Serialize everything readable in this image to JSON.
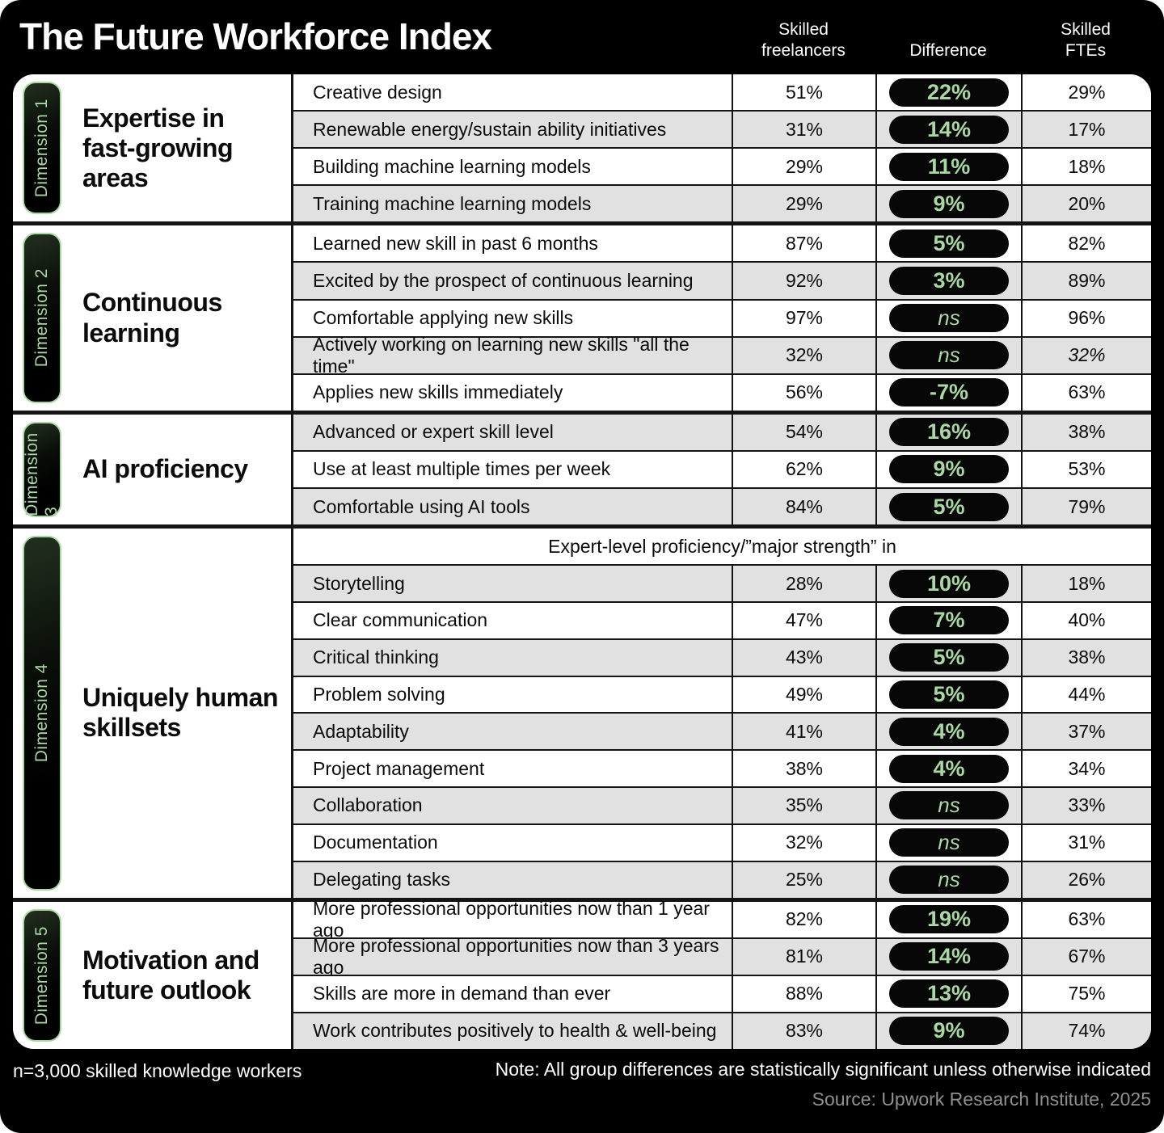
{
  "title": "The Future Workforce Index",
  "columns": {
    "freelancers": "Skilled\nfreelancers",
    "difference": "Difference",
    "ftes": "Skilled\nFTEs"
  },
  "colors": {
    "background": "#000000",
    "accent_green": "#a9d8a3",
    "row_alt_gray": "#e1e1e1",
    "pill_bg": "#070707",
    "source_gray": "#8f8f8f"
  },
  "sections": [
    {
      "dimension": "Dimension 1",
      "title": "Expertise in fast-growing areas",
      "rows": [
        {
          "label": "Creative design",
          "freelancers": "51%",
          "difference": "22%",
          "ftes": "29%"
        },
        {
          "label": "Renewable energy/sustain ability initiatives",
          "freelancers": "31%",
          "difference": "14%",
          "ftes": "17%"
        },
        {
          "label": "Building machine learning models",
          "freelancers": "29%",
          "difference": "11%",
          "ftes": "18%"
        },
        {
          "label": "Training machine learning models",
          "freelancers": "29%",
          "difference": "9%",
          "ftes": "20%"
        }
      ]
    },
    {
      "dimension": "Dimension 2",
      "title": "Continuous learning",
      "rows": [
        {
          "label": "Learned new skill in past 6 months",
          "freelancers": "87%",
          "difference": "5%",
          "ftes": "82%"
        },
        {
          "label": "Excited by the prospect of continuous learning",
          "freelancers": "92%",
          "difference": "3%",
          "ftes": "89%"
        },
        {
          "label": "Comfortable applying new skills",
          "freelancers": "97%",
          "difference": "ns",
          "ftes": "96%"
        },
        {
          "label": "Actively working on learning new skills \"all the time\"",
          "freelancers": "32%",
          "difference": "ns",
          "ftes": "32%",
          "ftes_italic": true
        },
        {
          "label": "Applies new skills immediately",
          "freelancers": "56%",
          "difference": "-7%",
          "ftes": "63%"
        }
      ]
    },
    {
      "dimension": "Dimension 3",
      "title": "AI proficiency",
      "rows": [
        {
          "label": "Advanced or expert skill level",
          "freelancers": "54%",
          "difference": "16%",
          "ftes": "38%"
        },
        {
          "label": "Use at least multiple times per week",
          "freelancers": "62%",
          "difference": "9%",
          "ftes": "53%"
        },
        {
          "label": "Comfortable using AI tools",
          "freelancers": "84%",
          "difference": "5%",
          "ftes": "79%"
        }
      ]
    },
    {
      "dimension": "Dimension 4",
      "title": "Uniquely human skillsets",
      "span_header": "Expert-level proficiency/”major strength” in",
      "rows": [
        {
          "label": "Storytelling",
          "freelancers": "28%",
          "difference": "10%",
          "ftes": "18%"
        },
        {
          "label": "Clear communication",
          "freelancers": "47%",
          "difference": "7%",
          "ftes": "40%"
        },
        {
          "label": "Critical thinking",
          "freelancers": "43%",
          "difference": "5%",
          "ftes": "38%"
        },
        {
          "label": "Problem solving",
          "freelancers": "49%",
          "difference": "5%",
          "ftes": "44%"
        },
        {
          "label": "Adaptability",
          "freelancers": "41%",
          "difference": "4%",
          "ftes": "37%"
        },
        {
          "label": "Project management",
          "freelancers": "38%",
          "difference": "4%",
          "ftes": "34%"
        },
        {
          "label": "Collaboration",
          "freelancers": "35%",
          "difference": "ns",
          "ftes": "33%"
        },
        {
          "label": "Documentation",
          "freelancers": "32%",
          "difference": "ns",
          "ftes": "31%"
        },
        {
          "label": "Delegating tasks",
          "freelancers": "25%",
          "difference": "ns",
          "ftes": "26%"
        }
      ]
    },
    {
      "dimension": "Dimension 5",
      "title": "Motivation and future outlook",
      "rows": [
        {
          "label": "More professional opportunities now than 1 year ago",
          "freelancers": "82%",
          "difference": "19%",
          "ftes": "63%"
        },
        {
          "label": "More professional opportunities now than 3 years ago",
          "freelancers": "81%",
          "difference": "14%",
          "ftes": "67%"
        },
        {
          "label": "Skills are more in demand than ever",
          "freelancers": "88%",
          "difference": "13%",
          "ftes": "75%"
        },
        {
          "label": "Work contributes positively to health & well-being",
          "freelancers": "83%",
          "difference": "9%",
          "ftes": "74%"
        }
      ]
    }
  ],
  "footer": {
    "sample": "n=3,000 skilled knowledge workers",
    "note": "Note: All group differences are statistically significant unless otherwise indicated",
    "source": "Source: Upwork Research Institute, 2025"
  },
  "chart_data": {
    "type": "table",
    "title": "The Future Workforce Index",
    "columns": [
      "Skilled freelancers",
      "Difference",
      "Skilled FTEs"
    ],
    "groups": [
      {
        "dimension": "Dimension 1",
        "name": "Expertise in fast-growing areas",
        "rows": [
          {
            "label": "Creative design",
            "skilled_freelancers_pct": 51,
            "difference": "22%",
            "skilled_ftes_pct": 29
          },
          {
            "label": "Renewable energy/sustain ability initiatives",
            "skilled_freelancers_pct": 31,
            "difference": "14%",
            "skilled_ftes_pct": 17
          },
          {
            "label": "Building machine learning models",
            "skilled_freelancers_pct": 29,
            "difference": "11%",
            "skilled_ftes_pct": 18
          },
          {
            "label": "Training machine learning models",
            "skilled_freelancers_pct": 29,
            "difference": "9%",
            "skilled_ftes_pct": 20
          }
        ]
      },
      {
        "dimension": "Dimension 2",
        "name": "Continuous learning",
        "rows": [
          {
            "label": "Learned new skill in past 6 months",
            "skilled_freelancers_pct": 87,
            "difference": "5%",
            "skilled_ftes_pct": 82
          },
          {
            "label": "Excited by the prospect of continuous learning",
            "skilled_freelancers_pct": 92,
            "difference": "3%",
            "skilled_ftes_pct": 89
          },
          {
            "label": "Comfortable applying new skills",
            "skilled_freelancers_pct": 97,
            "difference": "ns",
            "skilled_ftes_pct": 96
          },
          {
            "label": "Actively working on learning new skills \"all the time\"",
            "skilled_freelancers_pct": 32,
            "difference": "ns",
            "skilled_ftes_pct": 32
          },
          {
            "label": "Applies new skills immediately",
            "skilled_freelancers_pct": 56,
            "difference": "-7%",
            "skilled_ftes_pct": 63
          }
        ]
      },
      {
        "dimension": "Dimension 3",
        "name": "AI proficiency",
        "rows": [
          {
            "label": "Advanced or expert skill level",
            "skilled_freelancers_pct": 54,
            "difference": "16%",
            "skilled_ftes_pct": 38
          },
          {
            "label": "Use at least multiple times per week",
            "skilled_freelancers_pct": 62,
            "difference": "9%",
            "skilled_ftes_pct": 53
          },
          {
            "label": "Comfortable using AI tools",
            "skilled_freelancers_pct": 84,
            "difference": "5%",
            "skilled_ftes_pct": 79
          }
        ]
      },
      {
        "dimension": "Dimension 4",
        "name": "Uniquely human skillsets",
        "subheader": "Expert-level proficiency/”major strength” in",
        "rows": [
          {
            "label": "Storytelling",
            "skilled_freelancers_pct": 28,
            "difference": "10%",
            "skilled_ftes_pct": 18
          },
          {
            "label": "Clear communication",
            "skilled_freelancers_pct": 47,
            "difference": "7%",
            "skilled_ftes_pct": 40
          },
          {
            "label": "Critical thinking",
            "skilled_freelancers_pct": 43,
            "difference": "5%",
            "skilled_ftes_pct": 38
          },
          {
            "label": "Problem solving",
            "skilled_freelancers_pct": 49,
            "difference": "5%",
            "skilled_ftes_pct": 44
          },
          {
            "label": "Adaptability",
            "skilled_freelancers_pct": 41,
            "difference": "4%",
            "skilled_ftes_pct": 37
          },
          {
            "label": "Project management",
            "skilled_freelancers_pct": 38,
            "difference": "4%",
            "skilled_ftes_pct": 34
          },
          {
            "label": "Collaboration",
            "skilled_freelancers_pct": 35,
            "difference": "ns",
            "skilled_ftes_pct": 33
          },
          {
            "label": "Documentation",
            "skilled_freelancers_pct": 32,
            "difference": "ns",
            "skilled_ftes_pct": 31
          },
          {
            "label": "Delegating tasks",
            "skilled_freelancers_pct": 25,
            "difference": "ns",
            "skilled_ftes_pct": 26
          }
        ]
      },
      {
        "dimension": "Dimension 5",
        "name": "Motivation and future outlook",
        "rows": [
          {
            "label": "More professional opportunities now than 1 year ago",
            "skilled_freelancers_pct": 82,
            "difference": "19%",
            "skilled_ftes_pct": 63
          },
          {
            "label": "More professional opportunities now than 3 years ago",
            "skilled_freelancers_pct": 81,
            "difference": "14%",
            "skilled_ftes_pct": 67
          },
          {
            "label": "Skills are more in demand than ever",
            "skilled_freelancers_pct": 88,
            "difference": "13%",
            "skilled_ftes_pct": 75
          },
          {
            "label": "Work contributes positively to health & well-being",
            "skilled_freelancers_pct": 83,
            "difference": "9%",
            "skilled_ftes_pct": 74
          }
        ]
      }
    ],
    "notes": [
      "n=3,000 skilled knowledge workers",
      "Note: All group differences are statistically significant unless otherwise indicated",
      "Source: Upwork Research Institute, 2025"
    ]
  }
}
